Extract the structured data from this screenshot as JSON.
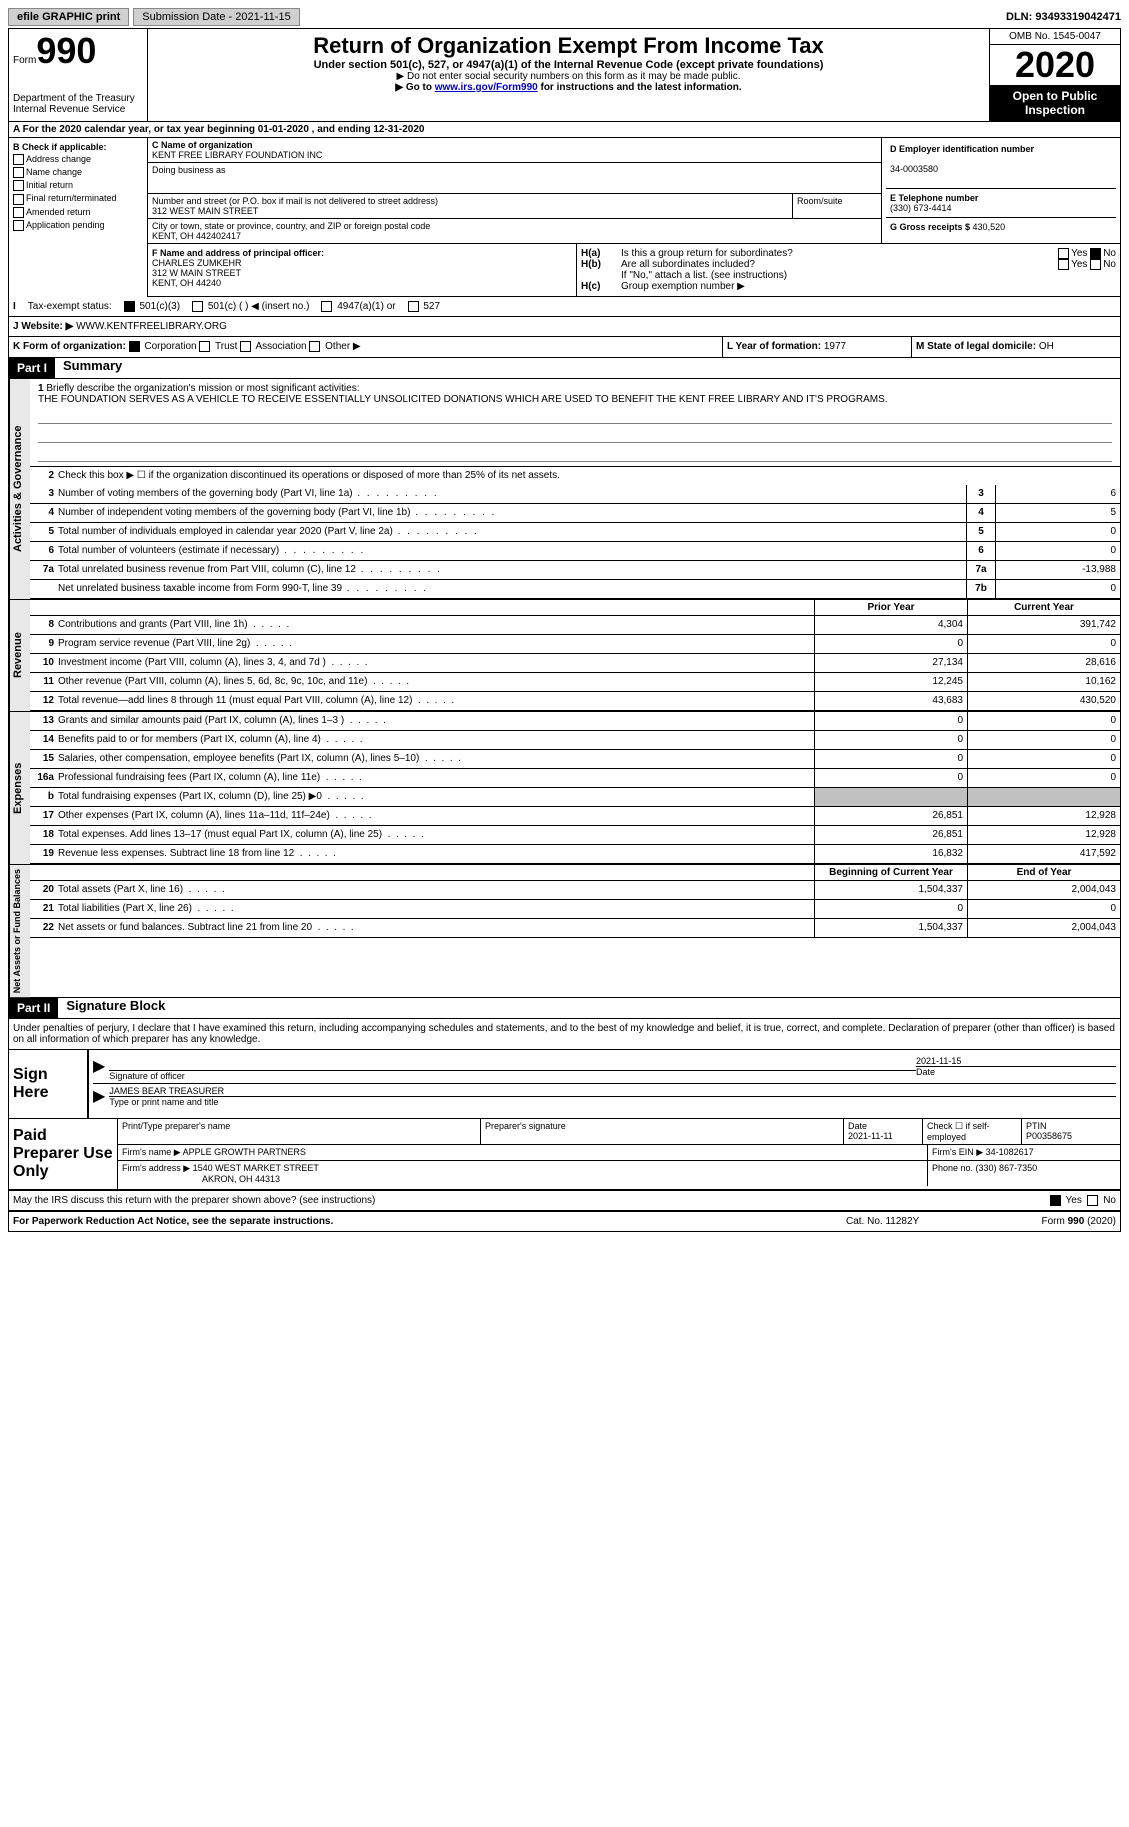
{
  "topbar": {
    "efile": "efile GRAPHIC print",
    "submission_label": "Submission Date - ",
    "submission_date": "2021-11-15",
    "dln_label": "DLN: ",
    "dln": "93493319042471"
  },
  "header": {
    "form_prefix": "Form",
    "form_num": "990",
    "dept": "Department of the Treasury\nInternal Revenue Service",
    "title": "Return of Organization Exempt From Income Tax",
    "subtitle": "Under section 501(c), 527, or 4947(a)(1) of the Internal Revenue Code (except private foundations)",
    "line1": "▶ Do not enter social security numbers on this form as it may be made public.",
    "line2_pre": "▶ Go to ",
    "line2_link": "www.irs.gov/Form990",
    "line2_post": " for instructions and the latest information.",
    "omb": "OMB No. 1545-0047",
    "year": "2020",
    "open": "Open to Public Inspection"
  },
  "row_a": "For the 2020 calendar year, or tax year beginning 01-01-2020    , and ending 12-31-2020",
  "section_b": {
    "label": "B Check if applicable:",
    "opts": [
      "Address change",
      "Name change",
      "Initial return",
      "Final return/terminated",
      "Amended return",
      "Application pending"
    ]
  },
  "section_c": {
    "name_label": "C Name of organization",
    "name": "KENT FREE LIBRARY FOUNDATION INC",
    "dba_label": "Doing business as",
    "addr_label": "Number and street (or P.O. box if mail is not delivered to street address)",
    "addr": "312 WEST MAIN STREET",
    "room_label": "Room/suite",
    "city_label": "City or town, state or province, country, and ZIP or foreign postal code",
    "city": "KENT, OH  442402417"
  },
  "section_d": {
    "ein_label": "D Employer identification number",
    "ein": "34-0003580",
    "phone_label": "E Telephone number",
    "phone": "(330) 673-4414",
    "gross_label": "G Gross receipts $ ",
    "gross": "430,520"
  },
  "section_f": {
    "label": "F  Name and address of principal officer:",
    "name": "CHARLES ZUMKEHR",
    "addr1": "312 W MAIN STREET",
    "addr2": "KENT, OH  44240"
  },
  "section_h": {
    "ha_label": "H(a)",
    "ha_text": "Is this a group return for subordinates?",
    "hb_label": "H(b)",
    "hb_text": "Are all subordinates included?",
    "hb_note": "If \"No,\" attach a list. (see instructions)",
    "hc_label": "H(c)",
    "hc_text": "Group exemption number ▶",
    "yes": "Yes",
    "no": "No"
  },
  "row_i": {
    "label": "I",
    "text": "Tax-exempt status:",
    "opt1": "501(c)(3)",
    "opt2": "501(c) (  ) ◀ (insert no.)",
    "opt3": "4947(a)(1) or",
    "opt4": "527"
  },
  "row_j": {
    "label": "J",
    "text": "Website: ▶ ",
    "url": "WWW.KENTFREELIBRARY.ORG"
  },
  "row_k": {
    "label": "K Form of organization:",
    "corp": "Corporation",
    "trust": "Trust",
    "assoc": "Association",
    "other": "Other ▶",
    "l_label": "L Year of formation: ",
    "l_val": "1977",
    "m_label": "M State of legal domicile: ",
    "m_val": "OH"
  },
  "part1": {
    "header": "Part I",
    "title": "Summary",
    "line1_label": "1",
    "line1_text": "Briefly describe the organization's mission or most significant activities:",
    "mission": "THE FOUNDATION SERVES AS A VEHICLE TO RECEIVE ESSENTIALLY UNSOLICITED DONATIONS WHICH ARE USED TO BENEFIT THE KENT FREE LIBRARY AND IT'S PROGRAMS.",
    "line2_label": "2",
    "line2_text": "Check this box ▶ ☐  if the organization discontinued its operations or disposed of more than 25% of its net assets.",
    "gov_side": "Activities & Governance",
    "rev_side": "Revenue",
    "exp_side": "Expenses",
    "net_side": "Net Assets or Fund Balances",
    "prior_header": "Prior Year",
    "current_header": "Current Year",
    "begin_header": "Beginning of Current Year",
    "end_header": "End of Year",
    "lines_gov": [
      {
        "n": "3",
        "d": "Number of voting members of the governing body (Part VI, line 1a)",
        "box": "3",
        "v": "6"
      },
      {
        "n": "4",
        "d": "Number of independent voting members of the governing body (Part VI, line 1b)",
        "box": "4",
        "v": "5"
      },
      {
        "n": "5",
        "d": "Total number of individuals employed in calendar year 2020 (Part V, line 2a)",
        "box": "5",
        "v": "0"
      },
      {
        "n": "6",
        "d": "Total number of volunteers (estimate if necessary)",
        "box": "6",
        "v": "0"
      },
      {
        "n": "7a",
        "d": "Total unrelated business revenue from Part VIII, column (C), line 12",
        "box": "7a",
        "v": "-13,988"
      },
      {
        "n": "",
        "d": "Net unrelated business taxable income from Form 990-T, line 39",
        "box": "7b",
        "v": "0"
      }
    ],
    "lines_rev": [
      {
        "n": "8",
        "d": "Contributions and grants (Part VIII, line 1h)",
        "p": "4,304",
        "c": "391,742"
      },
      {
        "n": "9",
        "d": "Program service revenue (Part VIII, line 2g)",
        "p": "0",
        "c": "0"
      },
      {
        "n": "10",
        "d": "Investment income (Part VIII, column (A), lines 3, 4, and 7d )",
        "p": "27,134",
        "c": "28,616"
      },
      {
        "n": "11",
        "d": "Other revenue (Part VIII, column (A), lines 5, 6d, 8c, 9c, 10c, and 11e)",
        "p": "12,245",
        "c": "10,162"
      },
      {
        "n": "12",
        "d": "Total revenue—add lines 8 through 11 (must equal Part VIII, column (A), line 12)",
        "p": "43,683",
        "c": "430,520"
      }
    ],
    "lines_exp": [
      {
        "n": "13",
        "d": "Grants and similar amounts paid (Part IX, column (A), lines 1–3 )",
        "p": "0",
        "c": "0"
      },
      {
        "n": "14",
        "d": "Benefits paid to or for members (Part IX, column (A), line 4)",
        "p": "0",
        "c": "0"
      },
      {
        "n": "15",
        "d": "Salaries, other compensation, employee benefits (Part IX, column (A), lines 5–10)",
        "p": "0",
        "c": "0"
      },
      {
        "n": "16a",
        "d": "Professional fundraising fees (Part IX, column (A), line 11e)",
        "p": "0",
        "c": "0"
      },
      {
        "n": "b",
        "d": "Total fundraising expenses (Part IX, column (D), line 25) ▶0",
        "p": "",
        "c": "",
        "shaded": true
      },
      {
        "n": "17",
        "d": "Other expenses (Part IX, column (A), lines 11a–11d, 11f–24e)",
        "p": "26,851",
        "c": "12,928"
      },
      {
        "n": "18",
        "d": "Total expenses. Add lines 13–17 (must equal Part IX, column (A), line 25)",
        "p": "26,851",
        "c": "12,928"
      },
      {
        "n": "19",
        "d": "Revenue less expenses. Subtract line 18 from line 12",
        "p": "16,832",
        "c": "417,592"
      }
    ],
    "lines_net": [
      {
        "n": "20",
        "d": "Total assets (Part X, line 16)",
        "p": "1,504,337",
        "c": "2,004,043"
      },
      {
        "n": "21",
        "d": "Total liabilities (Part X, line 26)",
        "p": "0",
        "c": "0"
      },
      {
        "n": "22",
        "d": "Net assets or fund balances. Subtract line 21 from line 20",
        "p": "1,504,337",
        "c": "2,004,043"
      }
    ]
  },
  "part2": {
    "header": "Part II",
    "title": "Signature Block",
    "penalties": "Under penalties of perjury, I declare that I have examined this return, including accompanying schedules and statements, and to the best of my knowledge and belief, it is true, correct, and complete. Declaration of preparer (other than officer) is based on all information of which preparer has any knowledge.",
    "sign_here": "Sign Here",
    "sig_officer": "Signature of officer",
    "sig_date_label": "Date",
    "sig_date": "2021-11-15",
    "sig_name": "JAMES BEAR TREASURER",
    "sig_name_label": "Type or print name and title",
    "paid_label": "Paid Preparer Use Only",
    "prep_name_label": "Print/Type preparer's name",
    "prep_sig_label": "Preparer's signature",
    "prep_date_label": "Date",
    "prep_date": "2021-11-11",
    "self_emp": "Check ☐ if self-employed",
    "ptin_label": "PTIN",
    "ptin": "P00358675",
    "firm_name_label": "Firm's name    ▶ ",
    "firm_name": "APPLE GROWTH PARTNERS",
    "firm_ein_label": "Firm's EIN ▶ ",
    "firm_ein": "34-1082617",
    "firm_addr_label": "Firm's address ▶ ",
    "firm_addr1": "1540 WEST MARKET STREET",
    "firm_addr2": "AKRON, OH  44313",
    "firm_phone_label": "Phone no. ",
    "firm_phone": "(330) 867-7350",
    "discuss": "May the IRS discuss this return with the preparer shown above? (see instructions)",
    "yes": "Yes",
    "no": "No"
  },
  "footer": {
    "left": "For Paperwork Reduction Act Notice, see the separate instructions.",
    "mid": "Cat. No. 11282Y",
    "right": "Form 990 (2020)"
  }
}
